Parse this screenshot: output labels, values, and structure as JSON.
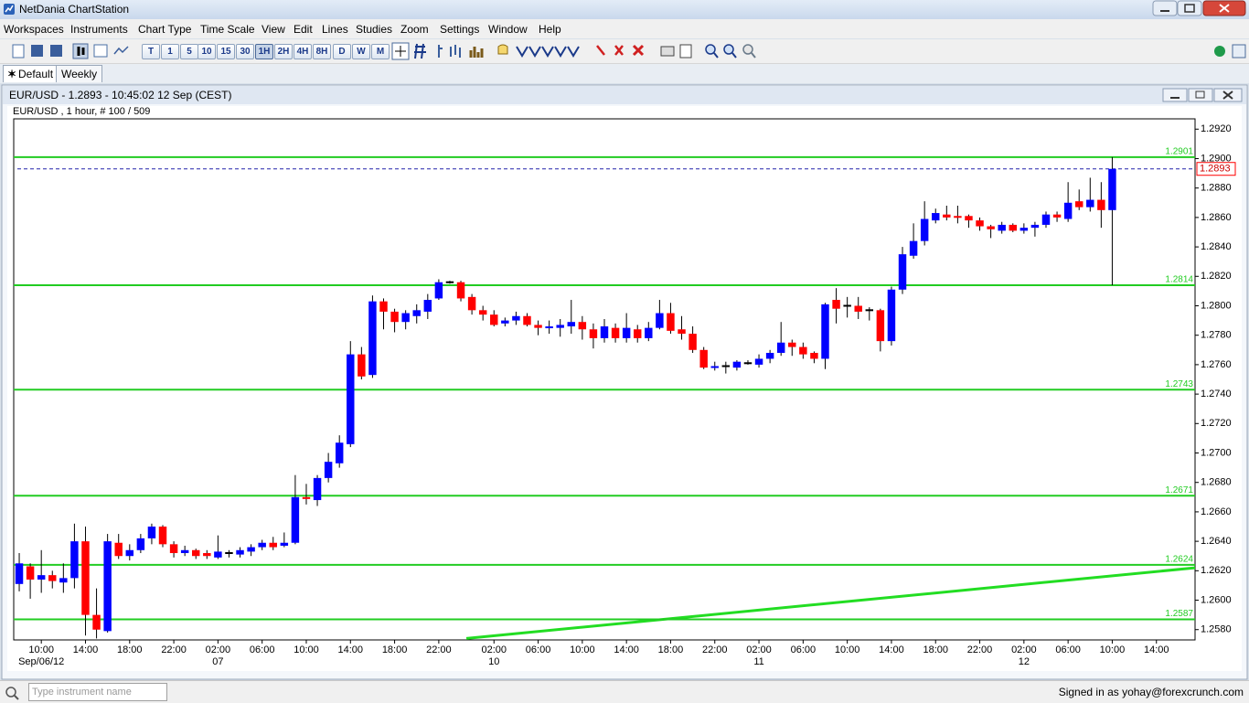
{
  "app": {
    "title": "NetDania ChartStation"
  },
  "menu": [
    "Workspaces",
    "Instruments",
    "Chart Type",
    "Time Scale",
    "View",
    "Edit",
    "Lines",
    "Studies",
    "Zoom",
    "Settings",
    "Window",
    "Help"
  ],
  "toolbar": [
    "T",
    "1",
    "5",
    "10",
    "15",
    "30",
    "1H",
    "2H",
    "4H",
    "8H",
    "D",
    "W",
    "M"
  ],
  "tabs": [
    "Default",
    "Weekly"
  ],
  "chart_window": {
    "title": "EUR/USD - 1.2893 - 10:45:02  12 Sep (CEST)"
  },
  "chart_data": {
    "type": "candlestick",
    "subtitle": "EUR/USD , 1 hour, # 100 / 509",
    "categories": [
      null,
      null,
      "10:00",
      null,
      null,
      null,
      "14:00",
      null,
      null,
      null,
      "18:00",
      null,
      null,
      null,
      "22:00",
      null,
      null,
      null,
      "02:00",
      null,
      null,
      null,
      "06:00",
      null,
      null,
      null,
      "10:00",
      null,
      null,
      null,
      "14:00",
      null,
      null,
      null,
      "18:00",
      null,
      null,
      null,
      "22:00",
      null,
      null,
      null,
      null,
      "02:00",
      null,
      null,
      null,
      "06:00",
      null,
      null,
      null,
      "10:00",
      null,
      null,
      null,
      "14:00",
      null,
      null,
      null,
      "18:00",
      null,
      null,
      null,
      "22:00",
      null,
      null,
      null,
      "02:00",
      null,
      null,
      null,
      "06:00",
      null,
      null,
      null,
      "10:00",
      null,
      null,
      null,
      "14:00",
      null,
      null,
      null,
      "18:00",
      null,
      null,
      null,
      "22:00",
      null,
      null,
      null,
      "02:00",
      null,
      null,
      null,
      "06:00",
      null,
      null,
      null,
      "10:00",
      null,
      null,
      null,
      "14:00",
      null,
      null,
      null
    ],
    "dates": [
      null,
      null,
      "Sep/06/12",
      null,
      null,
      null,
      null,
      null,
      null,
      null,
      null,
      null,
      null,
      null,
      null,
      null,
      null,
      null,
      "07",
      null,
      null,
      null,
      null,
      null,
      null,
      null,
      null,
      null,
      null,
      null,
      null,
      null,
      null,
      null,
      null,
      null,
      null,
      null,
      null,
      null,
      null,
      null,
      null,
      "10",
      null,
      null,
      null,
      null,
      null,
      null,
      null,
      null,
      null,
      null,
      null,
      null,
      null,
      null,
      null,
      null,
      null,
      null,
      null,
      null,
      null,
      null,
      null,
      "11",
      null,
      null,
      null,
      null,
      null,
      null,
      null,
      null,
      null,
      null,
      null,
      null,
      null,
      null,
      null,
      null,
      null,
      null,
      null,
      null,
      null,
      null,
      null,
      "12",
      null,
      null,
      null,
      null,
      null,
      null,
      null,
      null,
      null,
      null,
      null,
      null,
      null,
      null,
      null
    ],
    "open": [
      1.2611,
      1.2623,
      1.2614,
      1.2617,
      1.2612,
      1.2615,
      1.264,
      1.259,
      1.2579,
      1.2639,
      1.263,
      1.2634,
      1.2642,
      1.265,
      1.2638,
      1.2632,
      1.2634,
      1.2632,
      1.2629,
      1.2632,
      1.2631,
      1.2633,
      1.2636,
      1.2639,
      1.2637,
      1.2639,
      1.267,
      1.2668,
      1.2683,
      1.2693,
      1.2706,
      1.2767,
      1.2753,
      1.2803,
      1.2796,
      1.2789,
      1.2793,
      1.2796,
      1.2805,
      1.2816,
      1.2816,
      1.2806,
      1.2797,
      1.2794,
      1.2788,
      1.279,
      1.2793,
      1.2787,
      1.2785,
      1.2785,
      1.2786,
      1.2789,
      1.2784,
      1.2778,
      1.2785,
      1.2778,
      1.2784,
      1.2778,
      1.2785,
      1.2795,
      1.2784,
      1.2781,
      1.277,
      1.2758,
      1.2759,
      1.2758,
      1.2761,
      1.276,
      1.2764,
      1.2768,
      1.2775,
      1.2772,
      1.2768,
      1.2764,
      1.2804,
      1.28,
      1.28,
      1.2797,
      1.2797,
      1.2776,
      1.2811,
      1.2834,
      1.2844,
      1.2858,
      1.2862,
      1.2861,
      1.2861,
      1.2858,
      1.2854,
      1.2851,
      1.2855,
      1.2851,
      1.2853,
      1.2855,
      1.2862,
      1.2859,
      1.2871,
      1.2867,
      1.2872,
      1.2865,
      null,
      null,
      null,
      null,
      null,
      null,
      null
    ],
    "high": [
      1.2632,
      1.2625,
      1.2634,
      1.262,
      1.2625,
      1.2652,
      1.265,
      1.2608,
      1.2645,
      1.2645,
      1.2638,
      1.2645,
      1.2652,
      1.2651,
      1.264,
      1.2637,
      1.2635,
      1.2634,
      1.2644,
      1.2634,
      1.2636,
      1.2638,
      1.2641,
      1.2643,
      1.2646,
      1.2685,
      1.2679,
      1.2685,
      1.27,
      1.2712,
      1.2776,
      1.2772,
      1.2807,
      1.2805,
      1.2798,
      1.2797,
      1.2801,
      1.2808,
      1.2818,
      1.2817,
      1.2817,
      1.2808,
      1.28,
      1.2797,
      1.2792,
      1.2796,
      1.2795,
      1.279,
      1.279,
      1.2791,
      1.2804,
      1.2793,
      1.2788,
      1.2791,
      1.2788,
      1.2795,
      1.2787,
      1.2789,
      1.2804,
      1.2802,
      1.2793,
      1.2786,
      1.2772,
      1.2762,
      1.2762,
      1.2763,
      1.2763,
      1.2767,
      1.277,
      1.2789,
      1.2777,
      1.2775,
      1.2769,
      1.2802,
      1.2812,
      1.2806,
      1.2806,
      1.2799,
      1.2798,
      1.2813,
      1.284,
      1.2856,
      1.2871,
      1.2866,
      1.2868,
      1.2868,
      1.2862,
      1.286,
      1.2855,
      1.2857,
      1.2856,
      1.2856,
      1.2857,
      1.2864,
      1.2864,
      1.2884,
      1.2879,
      1.2887,
      1.2884,
      1.2901,
      null,
      null,
      null,
      null,
      null,
      null,
      null
    ],
    "low": [
      1.2606,
      1.2601,
      1.2605,
      1.2608,
      1.2605,
      1.2608,
      1.2576,
      1.2574,
      1.2578,
      1.2628,
      1.2627,
      1.2632,
      1.2638,
      1.2636,
      1.2629,
      1.263,
      1.2628,
      1.2628,
      1.2628,
      1.2629,
      1.2629,
      1.263,
      1.2634,
      1.2634,
      1.2636,
      1.2638,
      1.2665,
      1.2664,
      1.268,
      1.269,
      1.2704,
      1.275,
      1.2751,
      1.2784,
      1.2782,
      1.2784,
      1.2788,
      1.2791,
      1.2804,
      1.2815,
      1.2803,
      1.2794,
      1.279,
      1.2786,
      1.2786,
      1.2787,
      1.2786,
      1.278,
      1.2781,
      1.2779,
      1.2781,
      1.2777,
      1.2771,
      1.2775,
      1.2775,
      1.2775,
      1.2775,
      1.2776,
      1.2784,
      1.2781,
      1.2777,
      1.2768,
      1.2757,
      1.2756,
      1.2754,
      1.2756,
      1.276,
      1.2758,
      1.2761,
      1.2766,
      1.2766,
      1.2764,
      1.2761,
      1.2757,
      1.2788,
      1.2792,
      1.2791,
      1.279,
      1.2769,
      1.2773,
      1.2808,
      1.2832,
      1.2841,
      1.2856,
      1.2858,
      1.2856,
      1.2853,
      1.2851,
      1.2846,
      1.2849,
      1.285,
      1.2849,
      1.2847,
      1.2853,
      1.2857,
      1.2857,
      1.2865,
      1.2864,
      1.2853,
      1.2814,
      null,
      null,
      null,
      null,
      null,
      null,
      null
    ],
    "close": [
      1.2625,
      1.2614,
      1.2617,
      1.2613,
      1.2615,
      1.264,
      1.259,
      1.258,
      1.264,
      1.263,
      1.2634,
      1.2642,
      1.265,
      1.2638,
      1.2632,
      1.2634,
      1.263,
      1.263,
      1.2633,
      1.2632,
      1.2634,
      1.2636,
      1.2639,
      1.2636,
      1.2639,
      1.267,
      1.2669,
      1.2683,
      1.2694,
      1.2707,
      1.2767,
      1.2752,
      1.2803,
      1.2796,
      1.2789,
      1.2795,
      1.2797,
      1.2804,
      1.2816,
      1.2816,
      1.2805,
      1.2797,
      1.2794,
      1.2787,
      1.279,
      1.2793,
      1.2787,
      1.2785,
      1.2786,
      1.2787,
      1.2789,
      1.2784,
      1.2778,
      1.2786,
      1.2778,
      1.2785,
      1.2778,
      1.2785,
      1.2795,
      1.2783,
      1.2781,
      1.277,
      1.2758,
      1.2759,
      1.2759,
      1.2762,
      1.2761,
      1.2764,
      1.2768,
      1.2775,
      1.2772,
      1.2767,
      1.2764,
      1.2801,
      1.2798,
      1.28,
      1.2796,
      1.2797,
      1.2776,
      1.2811,
      1.2835,
      1.2844,
      1.2859,
      1.2863,
      1.286,
      1.286,
      1.2858,
      1.2854,
      1.2852,
      1.2855,
      1.2851,
      1.2853,
      1.2855,
      1.2862,
      1.286,
      1.287,
      1.2867,
      1.2872,
      1.2865,
      1.2893,
      null,
      null,
      null,
      null,
      null,
      null,
      null
    ],
    "up_color": "#0000ff",
    "down_color": "#ff0000",
    "flat_color": "#000000",
    "ylim": [
      1.2573,
      1.2927
    ],
    "yticks": [
      {
        "value": 1.258,
        "label": "1.2580"
      },
      {
        "value": 1.26,
        "label": "1.2600"
      },
      {
        "value": 1.262,
        "label": "1.2620"
      },
      {
        "value": 1.264,
        "label": "1.2640"
      },
      {
        "value": 1.266,
        "label": "1.2660"
      },
      {
        "value": 1.268,
        "label": "1.2680"
      },
      {
        "value": 1.27,
        "label": "1.2700"
      },
      {
        "value": 1.272,
        "label": "1.2720"
      },
      {
        "value": 1.274,
        "label": "1.2740"
      },
      {
        "value": 1.276,
        "label": "1.2760"
      },
      {
        "value": 1.278,
        "label": "1.2780"
      },
      {
        "value": 1.28,
        "label": "1.2800"
      },
      {
        "value": 1.282,
        "label": "1.2820"
      },
      {
        "value": 1.284,
        "label": "1.2840"
      },
      {
        "value": 1.286,
        "label": "1.2860"
      },
      {
        "value": 1.288,
        "label": "1.2880"
      },
      {
        "value": 1.29,
        "label": "1.2900"
      },
      {
        "value": 1.292,
        "label": "1.2920"
      }
    ],
    "levels": [
      1.2901,
      1.2814,
      1.2743,
      1.2671,
      1.2624,
      1.2587
    ],
    "level_color": "#22cc22",
    "trendline": {
      "x": [
        40.5,
        106.5
      ],
      "y": [
        1.2574,
        1.2622
      ],
      "color": "#22dd22"
    },
    "current_price": 1.2893,
    "current_price_color": "#2222aa"
  },
  "search": {
    "placeholder": "Type instrument name"
  },
  "status": "Signed in as yohay@forexcrunch.com"
}
